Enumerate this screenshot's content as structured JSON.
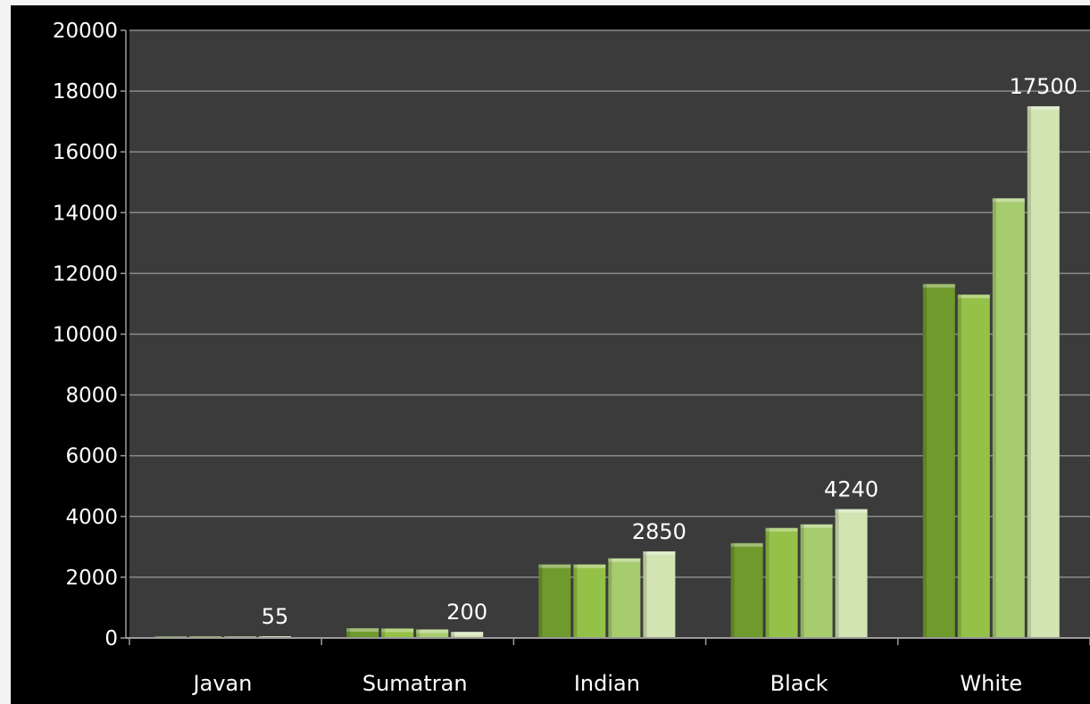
{
  "chart_data": {
    "type": "bar",
    "categories": [
      "Javan",
      "Sumatran",
      "Indian",
      "Black",
      "White"
    ],
    "series": [
      {
        "values": [
          50,
          320,
          2420,
          3120,
          11650
        ],
        "color": "#6f9a2c"
      },
      {
        "values": [
          50,
          310,
          2420,
          3620,
          11300
        ],
        "color": "#94c147"
      },
      {
        "values": [
          50,
          280,
          2620,
          3740,
          14470
        ],
        "color": "#a7cc6e"
      },
      {
        "values": [
          55,
          200,
          2850,
          4240,
          17500
        ],
        "color": "#d2e4b2"
      }
    ],
    "data_labels": [
      {
        "category": "Javan",
        "text": "55",
        "value": 55
      },
      {
        "category": "Sumatran",
        "text": "200",
        "value": 200
      },
      {
        "category": "Indian",
        "text": "2850",
        "value": 2850
      },
      {
        "category": "Black",
        "text": "4240",
        "value": 4240
      },
      {
        "category": "White",
        "text": "17500",
        "value": 17500
      }
    ],
    "yticks": [
      "0",
      "2000",
      "4000",
      "6000",
      "8000",
      "10000",
      "12000",
      "14000",
      "16000",
      "18000",
      "20000"
    ],
    "ylim": [
      0,
      20000
    ],
    "title": "",
    "xlabel": "",
    "ylabel": "",
    "grid": true,
    "legend": "none"
  },
  "colors": {
    "frame_background": "#000000",
    "plot_background": "#3b3b3b",
    "gridline": "#8a8a8a",
    "text": "#ffffff"
  }
}
